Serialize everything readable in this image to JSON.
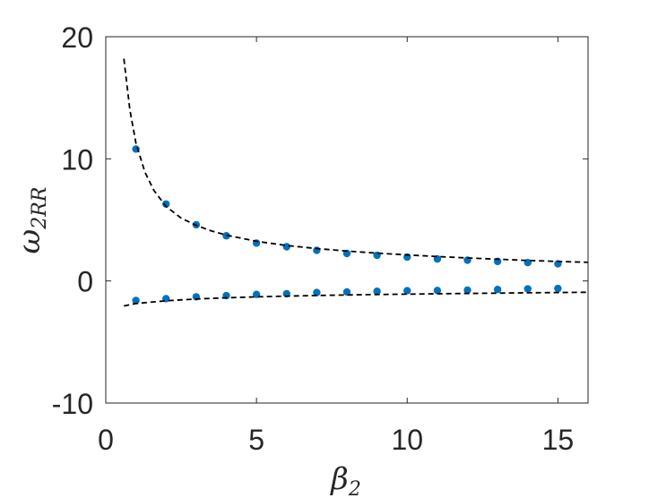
{
  "chart_data": {
    "type": "scatter",
    "xlabel": "β",
    "xlabel_sub": "2",
    "ylabel": "ω",
    "ylabel_sub": "2RR",
    "xlim": [
      0,
      16
    ],
    "ylim": [
      -10,
      20
    ],
    "xticks": [
      0,
      5,
      10,
      15
    ],
    "yticks": [
      -10,
      0,
      10,
      20
    ],
    "grid": false,
    "marker_color": "#0072bd",
    "line_color": "#000000",
    "series": [
      {
        "kind": "points",
        "x": [
          1,
          2,
          3,
          4,
          5,
          6,
          7,
          8,
          9,
          10,
          11,
          12,
          13,
          14,
          15
        ],
        "y": [
          10.8,
          6.3,
          4.6,
          3.7,
          3.1,
          2.8,
          2.5,
          2.25,
          2.1,
          1.95,
          1.8,
          1.7,
          1.6,
          1.5,
          1.4
        ]
      },
      {
        "kind": "points",
        "x": [
          1,
          2,
          3,
          4,
          5,
          6,
          7,
          8,
          9,
          10,
          11,
          12,
          13,
          14,
          15
        ],
        "y": [
          -1.6,
          -1.45,
          -1.3,
          -1.2,
          -1.1,
          -1.05,
          -0.95,
          -0.9,
          -0.85,
          -0.8,
          -0.78,
          -0.75,
          -0.7,
          -0.65,
          -0.62
        ]
      },
      {
        "kind": "dashed-line",
        "x": [
          0.6,
          0.8,
          1.0,
          1.3,
          1.6,
          2.0,
          2.5,
          3.0,
          3.5,
          4.0,
          5.0,
          6.0,
          7.0,
          8.0,
          9.0,
          10.0,
          11.0,
          12.0,
          13.0,
          14.0,
          15.0,
          16.0
        ],
        "y": [
          18.2,
          14.0,
          11.3,
          8.9,
          7.4,
          6.1,
          5.15,
          4.55,
          4.1,
          3.75,
          3.25,
          2.9,
          2.65,
          2.45,
          2.28,
          2.13,
          2.0,
          1.88,
          1.78,
          1.68,
          1.6,
          1.52
        ]
      },
      {
        "kind": "dashed-line",
        "x": [
          0.6,
          1,
          2,
          3,
          4,
          5,
          6,
          7,
          8,
          9,
          10,
          11,
          12,
          13,
          14,
          15,
          16
        ],
        "y": [
          -2.05,
          -1.85,
          -1.62,
          -1.48,
          -1.38,
          -1.3,
          -1.24,
          -1.19,
          -1.15,
          -1.11,
          -1.08,
          -1.05,
          -1.02,
          -1.0,
          -0.97,
          -0.95,
          -0.93
        ]
      }
    ]
  }
}
